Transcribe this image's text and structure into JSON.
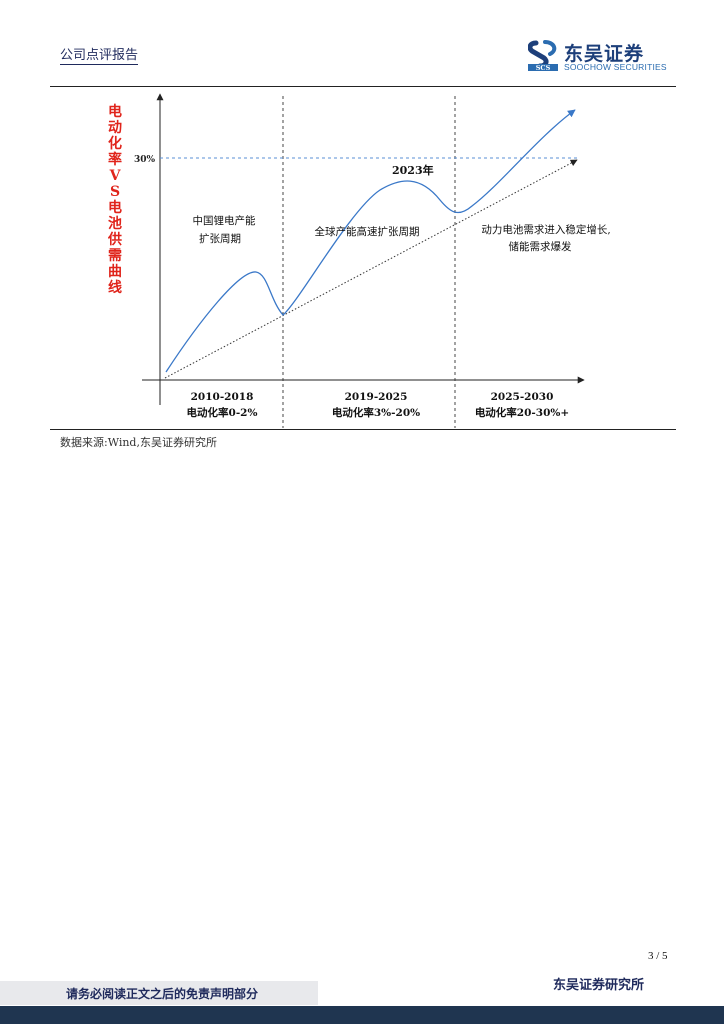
{
  "header": {
    "title": "公司点评报告",
    "logo_name": "东吴证券",
    "logo_en": "SOOCHOW SECURITIES",
    "logo_mark_text": "SCS"
  },
  "figure": {
    "vertical_title": "电动化率VS电池供需曲线",
    "ytick_label": "30%",
    "year_marker": "2023年",
    "phase_notes": [
      [
        "中国锂电产能",
        "扩张周期"
      ],
      [
        "全球产能高速扩张周期"
      ],
      [
        "动力电池需求进入稳定增长,",
        "储能需求爆发"
      ]
    ],
    "periods": [
      {
        "years": "2010-2018",
        "rate": "电动化率0-2%"
      },
      {
        "years": "2019-2025",
        "rate": "电动化率3%-20%"
      },
      {
        "years": "2025-2030",
        "rate": "电动化率20-30%+"
      }
    ],
    "source": "数据来源:Wind,东吴证券研究所"
  },
  "colors": {
    "curve": "#3a78c8",
    "title_red": "#e0241b",
    "brand_navy": "#1f2a5c",
    "footer_bar": "#1f3550"
  },
  "footer": {
    "disclaimer": "请务必阅读正文之后的免责声明部分",
    "company": "东吴证券研究所",
    "page": "3 / 5"
  }
}
